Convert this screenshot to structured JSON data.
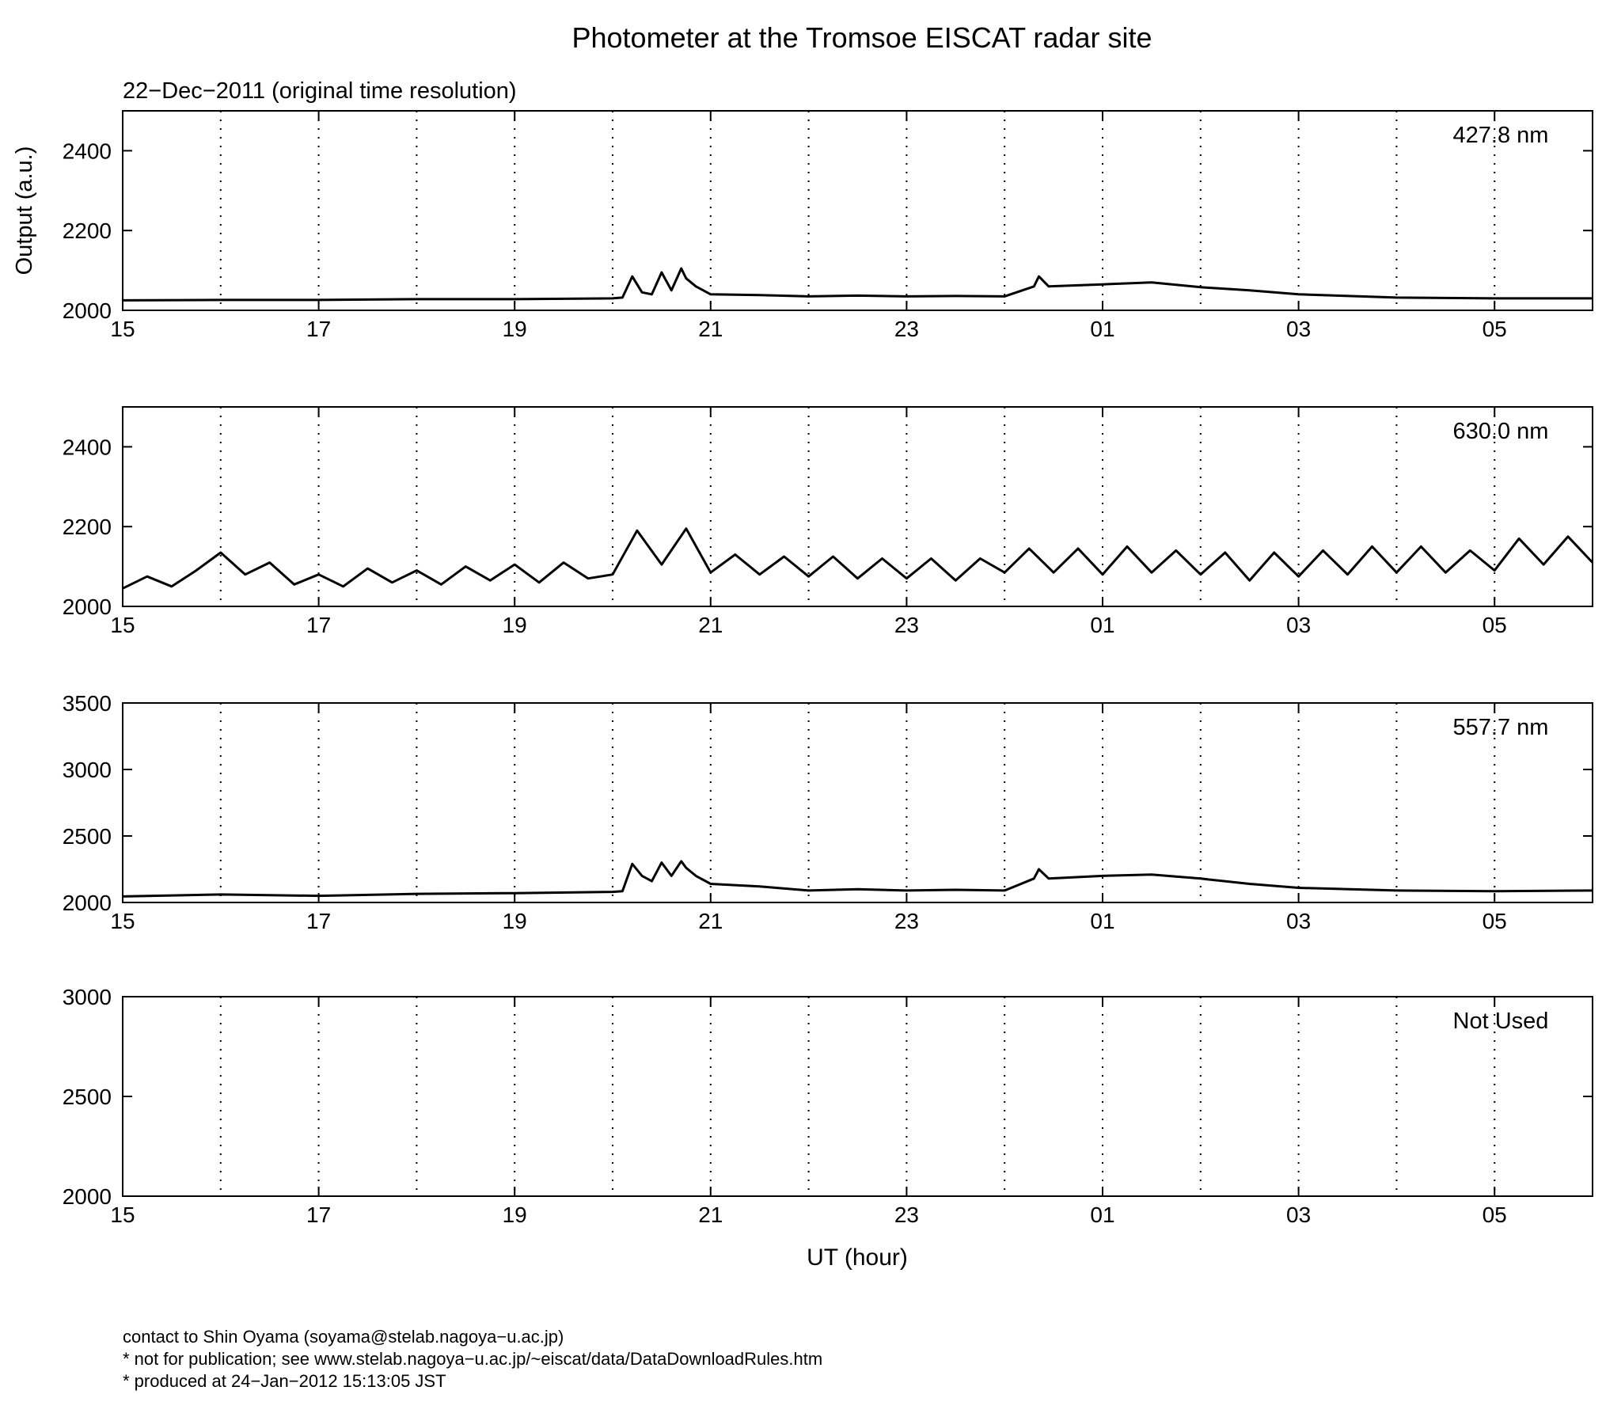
{
  "chart_data": [
    {
      "type": "line",
      "title": "Photometer at the Tromsoe EISCAT radar site",
      "subtitle": "22−Dec−2011 (original time resolution)",
      "ylabel": "Output (a.u.)",
      "annotation": "427.8 nm",
      "xlim": [
        15,
        30
      ],
      "xticks": [
        15,
        17,
        19,
        21,
        23,
        {
          "value": 25,
          "label": "01"
        },
        {
          "value": 27,
          "label": "03"
        },
        {
          "value": 29,
          "label": "05"
        }
      ],
      "xminorticks": [
        16,
        18,
        20,
        22,
        24,
        26,
        28
      ],
      "grid": true,
      "ylim": [
        2000,
        2500
      ],
      "yticks": [
        2000,
        2200,
        2400
      ],
      "x": [
        15,
        16,
        17,
        18,
        19,
        20,
        20.1,
        20.2,
        20.3,
        20.4,
        20.5,
        20.6,
        20.7,
        20.75,
        20.85,
        21,
        21.5,
        22,
        22.5,
        23,
        23.5,
        24,
        24.3,
        24.35,
        24.45,
        25,
        25.5,
        26,
        26.5,
        27,
        28,
        29,
        30
      ],
      "series": [
        {
          "color": "#000000",
          "values": [
            2025,
            2026,
            2026,
            2028,
            2028,
            2030,
            2032,
            2085,
            2045,
            2040,
            2095,
            2050,
            2105,
            2080,
            2060,
            2040,
            2038,
            2035,
            2037,
            2035,
            2036,
            2035,
            2060,
            2085,
            2060,
            2065,
            2070,
            2058,
            2050,
            2040,
            2032,
            2030,
            2030
          ]
        }
      ]
    },
    {
      "type": "line",
      "annotation": "630.0 nm",
      "xlim": [
        15,
        30
      ],
      "xticks": [
        15,
        17,
        19,
        21,
        23,
        {
          "value": 25,
          "label": "01"
        },
        {
          "value": 27,
          "label": "03"
        },
        {
          "value": 29,
          "label": "05"
        }
      ],
      "xminorticks": [
        16,
        18,
        20,
        22,
        24,
        26,
        28
      ],
      "grid": true,
      "ylim": [
        2000,
        2500
      ],
      "yticks": [
        2000,
        2200,
        2400
      ],
      "x": [
        15,
        15.25,
        15.5,
        15.75,
        16,
        16.25,
        16.5,
        16.75,
        17,
        17.25,
        17.5,
        17.75,
        18,
        18.25,
        18.5,
        18.75,
        19,
        19.25,
        19.5,
        19.75,
        20,
        20.25,
        20.5,
        20.75,
        21,
        21.25,
        21.5,
        21.75,
        22,
        22.25,
        22.5,
        22.75,
        23,
        23.25,
        23.5,
        23.75,
        24,
        24.25,
        24.5,
        24.75,
        25,
        25.25,
        25.5,
        25.75,
        26,
        26.25,
        26.5,
        26.75,
        27,
        27.25,
        27.5,
        27.75,
        28,
        28.25,
        28.5,
        28.75,
        29,
        29.25,
        29.5,
        29.75,
        30
      ],
      "series": [
        {
          "color": "#000000",
          "values": [
            2045,
            2075,
            2050,
            2090,
            2135,
            2080,
            2110,
            2055,
            2080,
            2050,
            2095,
            2060,
            2090,
            2055,
            2100,
            2065,
            2105,
            2060,
            2110,
            2070,
            2080,
            2190,
            2105,
            2195,
            2085,
            2130,
            2080,
            2125,
            2075,
            2125,
            2070,
            2120,
            2070,
            2120,
            2065,
            2120,
            2085,
            2145,
            2085,
            2145,
            2080,
            2150,
            2085,
            2140,
            2080,
            2135,
            2065,
            2135,
            2075,
            2140,
            2080,
            2150,
            2085,
            2150,
            2085,
            2140,
            2090,
            2170,
            2105,
            2175,
            2110
          ]
        }
      ]
    },
    {
      "type": "line",
      "annotation": "557.7 nm",
      "xlim": [
        15,
        30
      ],
      "xticks": [
        15,
        17,
        19,
        21,
        23,
        {
          "value": 25,
          "label": "01"
        },
        {
          "value": 27,
          "label": "03"
        },
        {
          "value": 29,
          "label": "05"
        }
      ],
      "xminorticks": [
        16,
        18,
        20,
        22,
        24,
        26,
        28
      ],
      "grid": true,
      "ylim": [
        2000,
        3500
      ],
      "yticks": [
        2000,
        2500,
        3000,
        3500
      ],
      "x": [
        15,
        16,
        17,
        18,
        19,
        20,
        20.1,
        20.2,
        20.3,
        20.4,
        20.5,
        20.6,
        20.7,
        20.75,
        20.85,
        21,
        21.5,
        22,
        22.5,
        23,
        23.5,
        24,
        24.3,
        24.35,
        24.45,
        25,
        25.5,
        26,
        26.5,
        27,
        28,
        29,
        30
      ],
      "series": [
        {
          "color": "#000000",
          "values": [
            2045,
            2060,
            2050,
            2065,
            2070,
            2080,
            2085,
            2290,
            2200,
            2160,
            2300,
            2200,
            2310,
            2260,
            2200,
            2140,
            2120,
            2090,
            2100,
            2090,
            2095,
            2090,
            2180,
            2250,
            2180,
            2200,
            2210,
            2180,
            2140,
            2110,
            2090,
            2085,
            2090
          ]
        }
      ]
    },
    {
      "type": "line",
      "annotation": "Not Used",
      "xlabel": "UT (hour)",
      "xlim": [
        15,
        30
      ],
      "xticks": [
        15,
        17,
        19,
        21,
        23,
        {
          "value": 25,
          "label": "01"
        },
        {
          "value": 27,
          "label": "03"
        },
        {
          "value": 29,
          "label": "05"
        }
      ],
      "xminorticks": [
        16,
        18,
        20,
        22,
        24,
        26,
        28
      ],
      "grid": true,
      "ylim": [
        2000,
        3000
      ],
      "yticks": [
        2000,
        2500,
        3000
      ],
      "x": [],
      "series": []
    }
  ],
  "notes": [
    "contact to Shin Oyama (soyama@stelab.nagoya−u.ac.jp)",
    "* not for publication; see www.stelab.nagoya−u.ac.jp/~eiscat/data/DataDownloadRules.htm",
    "* produced at 24−Jan−2012 15:13:05 JST"
  ]
}
